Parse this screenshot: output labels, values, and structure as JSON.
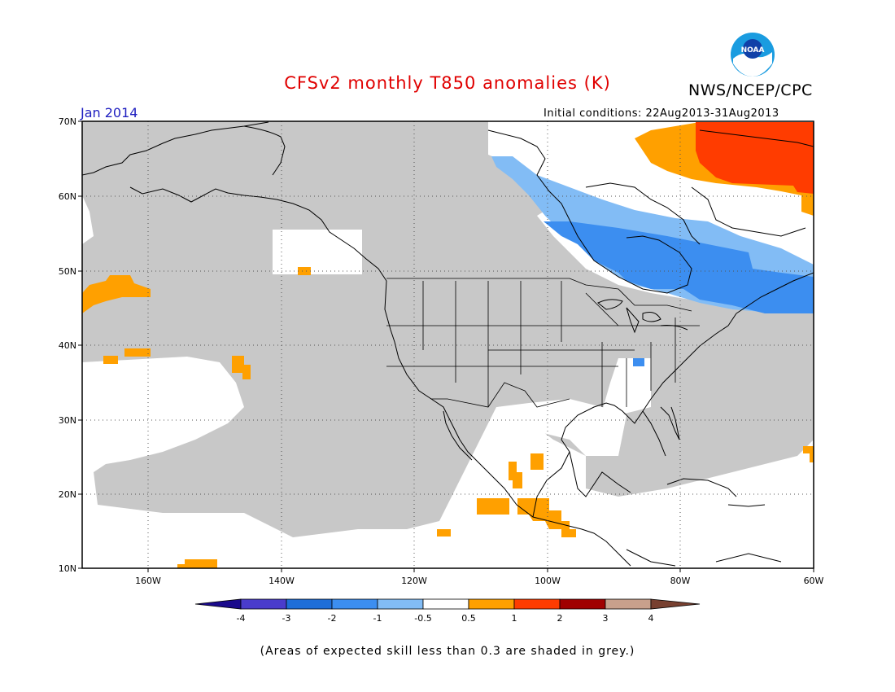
{
  "header": {
    "title": "CFSv2 monthly T850 anomalies (K)",
    "org": "NWS/NCEP/CPC",
    "logo_text": "NOAA",
    "period": "Jan 2014",
    "initial_conditions": "Initial conditions: 22Aug2013-31Aug2013"
  },
  "map": {
    "lat_labels": [
      "70N",
      "60N",
      "50N",
      "40N",
      "30N",
      "20N",
      "10N"
    ],
    "lon_labels": [
      "160W",
      "140W",
      "120W",
      "100W",
      "80W",
      "60W"
    ],
    "skill_mask_color": "#c8c8c8",
    "land_outline_color": "#000000"
  },
  "colorbar": {
    "labels": [
      "-4",
      "-3",
      "-2",
      "-1",
      "-0.5",
      "0.5",
      "1",
      "2",
      "3",
      "4"
    ],
    "colors": [
      "#1a0a8c",
      "#4a3ccc",
      "#1e6ed8",
      "#3c8ef0",
      "#82bcf5",
      "#ffffff",
      "#ffa000",
      "#ff3c00",
      "#a00000",
      "#c8a08c",
      "#784030"
    ]
  },
  "footer": {
    "note": "(Areas of expected skill less than 0.3 are shaded in grey.)"
  }
}
